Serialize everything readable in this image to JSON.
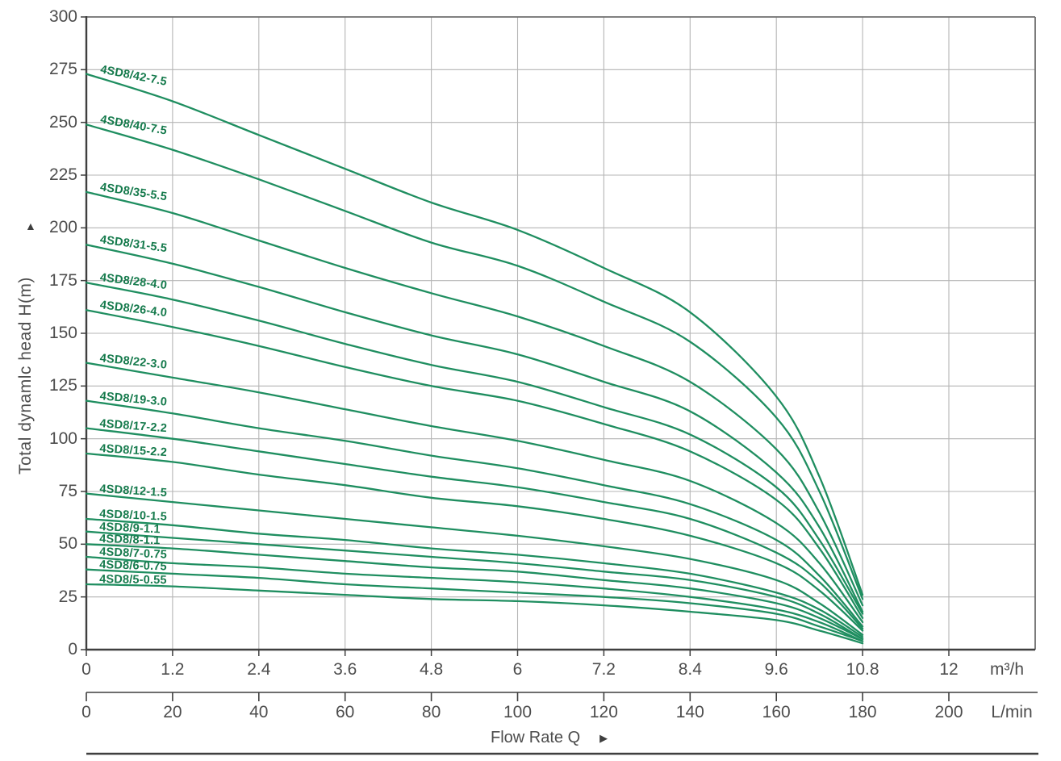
{
  "page": {
    "background": "#ffffff"
  },
  "colors": {
    "curve": "#1f8e60",
    "curve_label": "#157a4c",
    "grid": "#b5b5b5",
    "axis_dark": "#3f3f3f",
    "axis_medium": "#6e6e6e",
    "text": "#4d4d4d"
  },
  "y_axis": {
    "label": "Total dynamlc head H(m)",
    "arrow": "▲",
    "ticks": [
      "300",
      "275",
      "250",
      "225",
      "200",
      "175",
      "150",
      "125",
      "100",
      "75",
      "50",
      "25",
      "0"
    ],
    "min": 0,
    "max": 300,
    "step": 25
  },
  "x_axis_primary": {
    "unit": "m³/h",
    "ticks": [
      "0",
      "1.2",
      "2.4",
      "3.6",
      "4.8",
      "6",
      "7.2",
      "8.4",
      "9.6",
      "10.8",
      "12"
    ],
    "tick_step": 1.2,
    "grid_max": 13.2
  },
  "x_axis_secondary": {
    "unit": "L/min",
    "ticks": [
      "0",
      "20",
      "40",
      "60",
      "80",
      "100",
      "120",
      "140",
      "160",
      "180",
      "200"
    ],
    "tick_step": 20,
    "label": "Flow Rate Q",
    "arrow": "▶"
  },
  "chart_data": {
    "type": "line",
    "title": "",
    "xlabel": "Flow Rate Q",
    "ylabel": "Total dynamlc head H(m)",
    "x_units": [
      "m³/h",
      "L/min"
    ],
    "grid": true,
    "legend_position": "labels-on-curves",
    "ylim": [
      0,
      300
    ],
    "xlim_grid": [
      0,
      13.2
    ],
    "x": [
      0,
      1.2,
      2.4,
      3.6,
      4.8,
      6,
      7.2,
      8.4,
      9.6,
      10.2,
      10.8
    ],
    "series": [
      {
        "name": "4SD8/42-7.5",
        "values": [
          273,
          260,
          244,
          228,
          212,
          199,
          181,
          160,
          120,
          82,
          26
        ]
      },
      {
        "name": "4SD8/40-7.5",
        "values": [
          249,
          237,
          223,
          208,
          193,
          182,
          165,
          146,
          110,
          75,
          24
        ]
      },
      {
        "name": "4SD8/35-5.5",
        "values": [
          217,
          207,
          194,
          181,
          169,
          158,
          144,
          127,
          95,
          65,
          21
        ]
      },
      {
        "name": "4SD8/31-5.5",
        "values": [
          192,
          183,
          172,
          160,
          149,
          140,
          127,
          113,
          84,
          58,
          18
        ]
      },
      {
        "name": "4SD8/28-4.0",
        "values": [
          174,
          166,
          156,
          145,
          135,
          127,
          115,
          102,
          77,
          52,
          17
        ]
      },
      {
        "name": "4SD8/26-4.0",
        "values": [
          161,
          153,
          144,
          134,
          125,
          118,
          107,
          94,
          71,
          48,
          15
        ]
      },
      {
        "name": "4SD8/22-3.0",
        "values": [
          136,
          129,
          122,
          114,
          106,
          99,
          90,
          80,
          60,
          41,
          13
        ]
      },
      {
        "name": "4SD8/19-3.0",
        "values": [
          118,
          112,
          105,
          99,
          92,
          86,
          78,
          69,
          52,
          35,
          11
        ]
      },
      {
        "name": "4SD8/17-2.2",
        "values": [
          105,
          100,
          94,
          88,
          82,
          77,
          70,
          62,
          46,
          32,
          10
        ]
      },
      {
        "name": "4SD8/15-2.2",
        "values": [
          93,
          89,
          83,
          78,
          72,
          68,
          62,
          54,
          41,
          28,
          9
        ]
      },
      {
        "name": "4SD8/12-1.5",
        "values": [
          74,
          70,
          66,
          62,
          58,
          54,
          49,
          43,
          33,
          22,
          7
        ]
      },
      {
        "name": "4SD8/10-1.5",
        "values": [
          62,
          59,
          55,
          52,
          48,
          45,
          41,
          36,
          27,
          19,
          6
        ]
      },
      {
        "name": "4SD8/9-1.1",
        "values": [
          56,
          53,
          50,
          47,
          44,
          41,
          37,
          33,
          25,
          17,
          5
        ]
      },
      {
        "name": "4SD8/8-1.1",
        "values": [
          50,
          48,
          45,
          42,
          39,
          37,
          33,
          29,
          22,
          15,
          5
        ]
      },
      {
        "name": "4SD8/7-0.75",
        "values": [
          44,
          41,
          39,
          36,
          34,
          32,
          29,
          25,
          19,
          13,
          4
        ]
      },
      {
        "name": "4SD8/6-0.75",
        "values": [
          38,
          36,
          34,
          31,
          29,
          27,
          25,
          22,
          17,
          11,
          4
        ]
      },
      {
        "name": "4SD8/5-0.55",
        "values": [
          31,
          30,
          28,
          26,
          24,
          23,
          21,
          18,
          14,
          9,
          3
        ]
      }
    ]
  }
}
